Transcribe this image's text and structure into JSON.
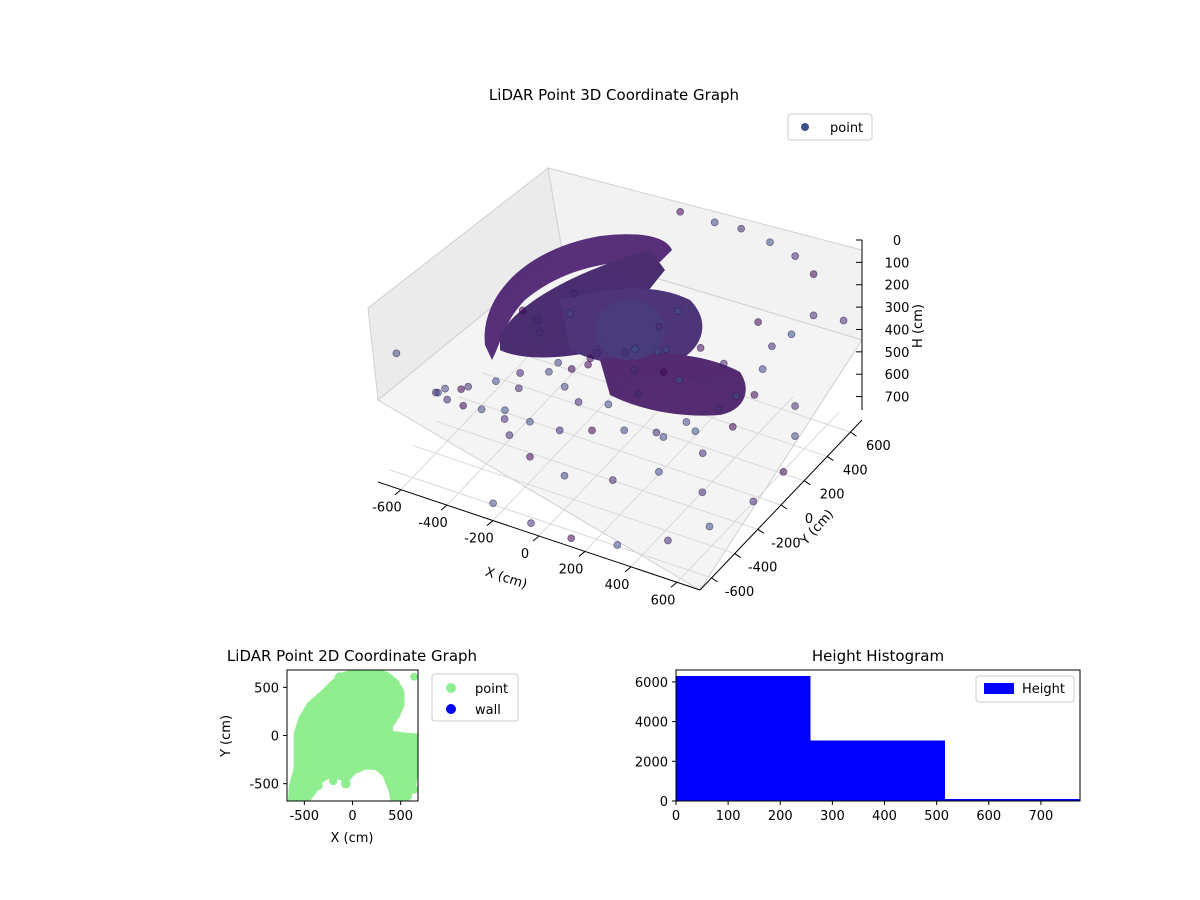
{
  "chart_data": [
    {
      "type": "scatter",
      "projection": "3d",
      "title": "LiDAR Point 3D Coordinate Graph",
      "xlabel": "X (cm)",
      "ylabel": "Y (cm)",
      "zlabel": "H (cm)",
      "xlim": [
        -700,
        700
      ],
      "ylim": [
        -700,
        700
      ],
      "zlim": [
        0,
        760
      ],
      "z_inverted": true,
      "xticks": [
        -600,
        -400,
        -200,
        0,
        200,
        400,
        600
      ],
      "yticks": [
        -600,
        -400,
        -200,
        0,
        200,
        400,
        600
      ],
      "zticks": [
        0,
        100,
        200,
        300,
        400,
        500,
        600,
        700
      ],
      "grid": true,
      "legend": "top-right",
      "series": [
        {
          "name": "point",
          "color": "#3b528b",
          "colormap": "viridis-dark",
          "points": [
            {
              "x": 560,
              "y": 560,
              "z": 80
            },
            {
              "x": 450,
              "y": 620,
              "z": 70
            },
            {
              "x": 330,
              "y": 640,
              "z": 60
            },
            {
              "x": 200,
              "y": 650,
              "z": 50
            },
            {
              "x": 100,
              "y": 620,
              "z": 40
            },
            {
              "x": -40,
              "y": 600,
              "z": 30
            },
            {
              "x": 640,
              "y": 400,
              "z": 150
            },
            {
              "x": 620,
              "y": 250,
              "z": 160
            },
            {
              "x": 600,
              "y": 120,
              "z": 150
            },
            {
              "x": 620,
              "y": 0,
              "z": 180
            },
            {
              "x": 660,
              "y": -150,
              "z": 200
            },
            {
              "x": 580,
              "y": -300,
              "z": 210
            },
            {
              "x": 500,
              "y": -420,
              "z": 230
            },
            {
              "x": 420,
              "y": -520,
              "z": 250
            },
            {
              "x": 300,
              "y": -560,
              "z": 260
            },
            {
              "x": 180,
              "y": -600,
              "z": 280
            },
            {
              "x": 60,
              "y": -640,
              "z": 300
            },
            {
              "x": -80,
              "y": -620,
              "z": 320
            },
            {
              "x": -200,
              "y": -600,
              "z": 360
            },
            {
              "x": -320,
              "y": -560,
              "z": 380
            },
            {
              "x": -420,
              "y": -520,
              "z": 420
            },
            {
              "x": -520,
              "y": -460,
              "z": 460
            },
            {
              "x": -600,
              "y": -380,
              "z": 500
            },
            {
              "x": -650,
              "y": -300,
              "z": 560
            },
            {
              "x": -660,
              "y": -200,
              "z": 600
            },
            {
              "x": -640,
              "y": -100,
              "z": 650
            },
            {
              "x": -660,
              "y": 0,
              "z": 700
            },
            {
              "x": -600,
              "y": 120,
              "z": 720
            },
            {
              "x": -560,
              "y": 250,
              "z": 740
            },
            {
              "x": -460,
              "y": 380,
              "z": 730
            },
            {
              "x": -360,
              "y": 460,
              "z": 720
            },
            {
              "x": -250,
              "y": 540,
              "z": 700
            },
            {
              "x": -140,
              "y": 600,
              "z": 690
            },
            {
              "x": 20,
              "y": 300,
              "z": 360
            },
            {
              "x": 100,
              "y": 200,
              "z": 380
            },
            {
              "x": 150,
              "y": 80,
              "z": 400
            },
            {
              "x": 120,
              "y": -80,
              "z": 420
            },
            {
              "x": 40,
              "y": -180,
              "z": 440
            },
            {
              "x": -80,
              "y": -200,
              "z": 460
            },
            {
              "x": -180,
              "y": -120,
              "z": 470
            },
            {
              "x": -220,
              "y": 20,
              "z": 480
            },
            {
              "x": -180,
              "y": 160,
              "z": 470
            },
            {
              "x": -60,
              "y": 250,
              "z": 460
            },
            {
              "x": 250,
              "y": 400,
              "z": 500
            },
            {
              "x": 380,
              "y": 250,
              "z": 520
            },
            {
              "x": 450,
              "y": 80,
              "z": 540
            },
            {
              "x": 420,
              "y": -120,
              "z": 560
            },
            {
              "x": 320,
              "y": -300,
              "z": 580
            },
            {
              "x": 180,
              "y": -420,
              "z": 600
            },
            {
              "x": 0,
              "y": -480,
              "z": 610
            },
            {
              "x": -180,
              "y": -420,
              "z": 620
            },
            {
              "x": -330,
              "y": -300,
              "z": 640
            },
            {
              "x": -430,
              "y": -140,
              "z": 650
            },
            {
              "x": -460,
              "y": 40,
              "z": 660
            },
            {
              "x": -420,
              "y": 220,
              "z": 670
            },
            {
              "x": -320,
              "y": 360,
              "z": 680
            },
            {
              "x": -160,
              "y": 440,
              "z": 690
            },
            {
              "x": 20,
              "y": 470,
              "z": 690
            },
            {
              "x": 520,
              "y": 480,
              "z": 640
            },
            {
              "x": 600,
              "y": 320,
              "z": 660
            },
            {
              "x": 660,
              "y": 100,
              "z": 680
            },
            {
              "x": 640,
              "y": -120,
              "z": 700
            },
            {
              "x": 560,
              "y": -340,
              "z": 720
            },
            {
              "x": 460,
              "y": -500,
              "z": 730
            },
            {
              "x": 300,
              "y": -620,
              "z": 740
            },
            {
              "x": 120,
              "y": -660,
              "z": 750
            },
            {
              "x": -60,
              "y": -650,
              "z": 750
            },
            {
              "x": -240,
              "y": -620,
              "z": 740
            },
            {
              "x": -640,
              "y": 560,
              "z": 700
            },
            {
              "x": -520,
              "y": 600,
              "z": 650
            },
            {
              "x": -650,
              "y": 450,
              "z": 600
            },
            {
              "x": 650,
              "y": 640,
              "z": 300
            },
            {
              "x": 650,
              "y": -640,
              "z": 100
            },
            {
              "x": 640,
              "y": -560,
              "z": 420
            },
            {
              "x": -650,
              "y": -640,
              "z": 200
            },
            {
              "x": 300,
              "y": 100,
              "z": 250
            },
            {
              "x": -300,
              "y": -100,
              "z": 280
            },
            {
              "x": 60,
              "y": 380,
              "z": 320
            },
            {
              "x": -350,
              "y": 300,
              "z": 340
            },
            {
              "x": 380,
              "y": -380,
              "z": 360
            },
            {
              "x": 500,
              "y": 200,
              "z": 120
            }
          ]
        }
      ]
    },
    {
      "type": "scatter",
      "title": "LiDAR Point 2D Coordinate Graph",
      "xlabel": "X (cm)",
      "ylabel": "Y (cm)",
      "xlim": [
        -680,
        680
      ],
      "ylim": [
        -680,
        680
      ],
      "xticks": [
        -500,
        0,
        500
      ],
      "yticks": [
        -500,
        0,
        500
      ],
      "legend": "outside-right",
      "series": [
        {
          "name": "point",
          "color": "#90ee90"
        },
        {
          "name": "wall",
          "color": "#0000ff"
        }
      ],
      "region_shape": [
        {
          "x": -310,
          "y": 450
        },
        {
          "x": -200,
          "y": 560
        },
        {
          "x": -90,
          "y": 640
        },
        {
          "x": 60,
          "y": 680
        },
        {
          "x": 220,
          "y": 680
        },
        {
          "x": 360,
          "y": 640
        },
        {
          "x": 460,
          "y": 560
        },
        {
          "x": 520,
          "y": 450
        },
        {
          "x": 520,
          "y": 320
        },
        {
          "x": 470,
          "y": 200
        },
        {
          "x": 400,
          "y": 100
        },
        {
          "x": 400,
          "y": 30
        },
        {
          "x": 530,
          "y": 10
        },
        {
          "x": 680,
          "y": 0
        },
        {
          "x": 680,
          "y": -300
        },
        {
          "x": 640,
          "y": -520
        },
        {
          "x": 560,
          "y": -640
        },
        {
          "x": 480,
          "y": -680
        },
        {
          "x": 420,
          "y": -680
        },
        {
          "x": 390,
          "y": -560
        },
        {
          "x": 330,
          "y": -410
        },
        {
          "x": 250,
          "y": -340
        },
        {
          "x": 140,
          "y": -330
        },
        {
          "x": 20,
          "y": -380
        },
        {
          "x": -60,
          "y": -470
        },
        {
          "x": -130,
          "y": -440
        },
        {
          "x": -220,
          "y": -410
        },
        {
          "x": -320,
          "y": -470
        },
        {
          "x": -380,
          "y": -560
        },
        {
          "x": -450,
          "y": -660
        },
        {
          "x": -560,
          "y": -680
        },
        {
          "x": -650,
          "y": -680
        },
        {
          "x": -640,
          "y": -520
        },
        {
          "x": -590,
          "y": -340
        },
        {
          "x": -590,
          "y": -150
        },
        {
          "x": -590,
          "y": 20
        },
        {
          "x": -540,
          "y": 180
        },
        {
          "x": -450,
          "y": 330
        }
      ],
      "region_blobs": [
        {
          "x": -560,
          "y": -620,
          "r": 70
        },
        {
          "x": -430,
          "y": -580,
          "r": 55
        },
        {
          "x": -360,
          "y": -520,
          "r": 50
        },
        {
          "x": -200,
          "y": -470,
          "r": 45
        },
        {
          "x": -70,
          "y": -500,
          "r": 50
        },
        {
          "x": 440,
          "y": -640,
          "r": 55
        },
        {
          "x": 560,
          "y": -620,
          "r": 60
        },
        {
          "x": 640,
          "y": -560,
          "r": 45
        },
        {
          "x": 380,
          "y": 420,
          "r": 60
        },
        {
          "x": 420,
          "y": 530,
          "r": 55
        },
        {
          "x": 640,
          "y": 610,
          "r": 40
        },
        {
          "x": -130,
          "y": 600,
          "r": 55
        },
        {
          "x": 60,
          "y": 660,
          "r": 60
        },
        {
          "x": 240,
          "y": 650,
          "r": 55
        },
        {
          "x": 560,
          "y": -350,
          "r": 60
        }
      ]
    },
    {
      "type": "bar",
      "subtype": "histogram",
      "title": "Height Histogram",
      "legend": "top-right",
      "xlim": [
        0,
        775
      ],
      "ylim": [
        0,
        6600
      ],
      "xticks": [
        0,
        100,
        200,
        300,
        400,
        500,
        600,
        700
      ],
      "yticks": [
        0,
        2000,
        4000,
        6000
      ],
      "series": [
        {
          "name": "Height",
          "color": "#0000ff",
          "bins": [
            {
              "start": 0,
              "end": 258,
              "value": 6300
            },
            {
              "start": 258,
              "end": 516,
              "value": 3050
            },
            {
              "start": 516,
              "end": 775,
              "value": 100
            }
          ]
        }
      ]
    }
  ]
}
